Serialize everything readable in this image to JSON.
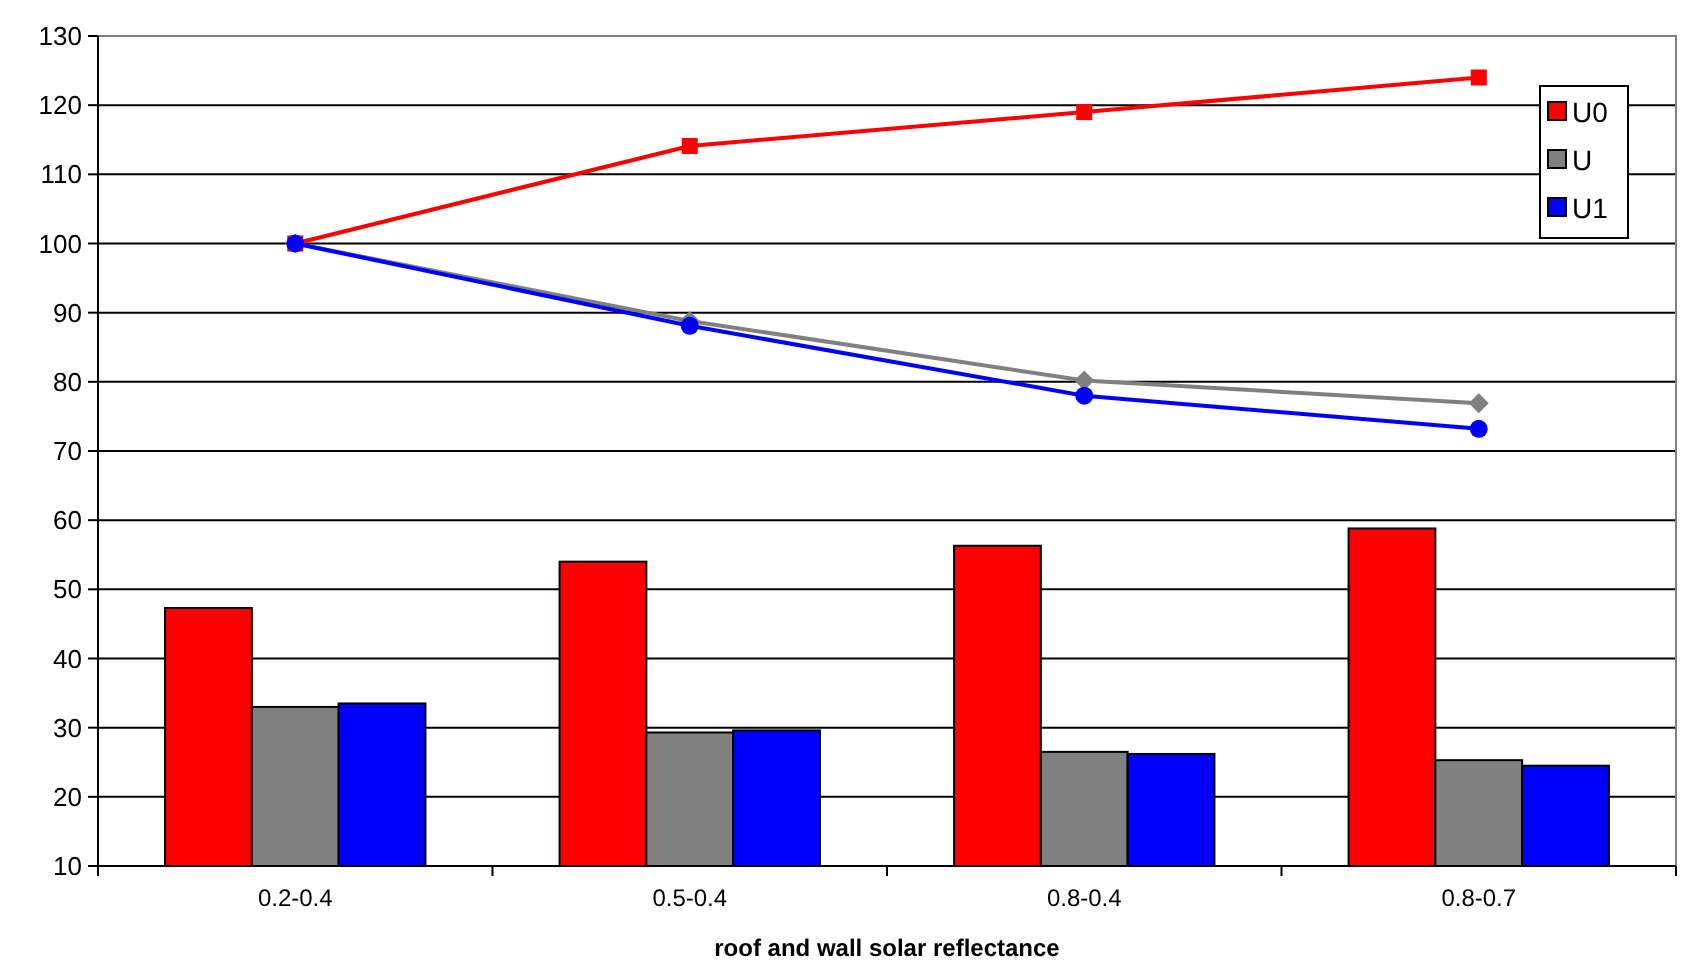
{
  "chart_data": {
    "type": "bar",
    "xlabel": "roof and wall solar reflectance",
    "categories": [
      "0.2-0.4",
      "0.5-0.4",
      "0.8-0.4",
      "0.8-0.7"
    ],
    "series": [
      {
        "name": "U0",
        "color": "#ff0000",
        "values": [
          47.3,
          54,
          56.3,
          58.8
        ]
      },
      {
        "name": "U",
        "color": "#808080",
        "values": [
          33,
          29.3,
          26.5,
          25.3
        ]
      },
      {
        "name": "U1",
        "color": "#0000ff",
        "values": [
          33.5,
          29.6,
          26.2,
          24.5
        ]
      },
      {
        "type": "line",
        "color": "#ff0000",
        "marker": "square",
        "values": [
          100,
          114.1,
          119,
          124
        ]
      },
      {
        "type": "line",
        "color": "#808080",
        "marker": "diamond",
        "values": [
          100,
          88.8,
          80.2,
          76.9
        ]
      },
      {
        "type": "line",
        "color": "#0000ff",
        "marker": "circle",
        "values": [
          100,
          88.1,
          78,
          73.2
        ]
      }
    ],
    "ylim": [
      10,
      130
    ],
    "yticks": [
      10,
      20,
      30,
      40,
      50,
      60,
      70,
      80,
      90,
      100,
      110,
      120,
      130
    ],
    "grid": "y",
    "legend": "right"
  }
}
